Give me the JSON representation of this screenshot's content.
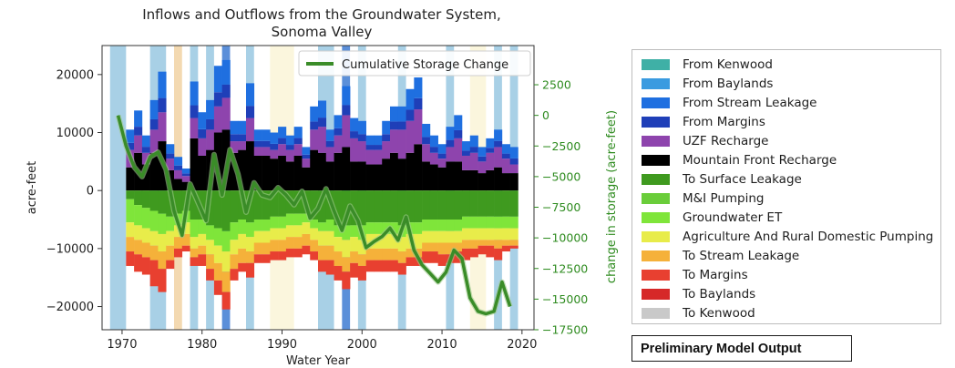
{
  "chart_data": {
    "type": "area",
    "title_line1": "Inflows and Outflows from the Groundwater System,",
    "title_line2": "Sonoma Valley",
    "xlabel": "Water Year",
    "ylabel": "acre-feet",
    "y2label": "change in storage (acre-feet)",
    "xlim": [
      1967.5,
      2021.5
    ],
    "ylim": [
      -24000,
      25000
    ],
    "y2lim": [
      -17500,
      5700
    ],
    "x_ticks": [
      "1970",
      "1980",
      "1990",
      "2000",
      "2010",
      "2020"
    ],
    "x_tick_values": [
      1970,
      1980,
      1990,
      2000,
      2010,
      2020
    ],
    "y_ticks": [
      "20000",
      "10000",
      "0",
      "−10000",
      "−20000"
    ],
    "y_tick_values": [
      20000,
      10000,
      0,
      -10000,
      -20000
    ],
    "y2_ticks": [
      "2500",
      "0",
      "−2500",
      "−5000",
      "−7500",
      "−10000",
      "−12500",
      "−15000",
      "−17500"
    ],
    "y2_tick_values": [
      2500,
      0,
      -2500,
      -5000,
      -7500,
      -10000,
      -12500,
      -15000,
      -17500
    ],
    "year_start": 1970,
    "years_count": 49,
    "inflow_totals": [
      10500,
      13800,
      9500,
      15600,
      20500,
      8000,
      5800,
      3800,
      18800,
      13500,
      15600,
      21500,
      22500,
      12000,
      12000,
      18500,
      10500,
      10500,
      10000,
      11000,
      9500,
      11000,
      7500,
      14500,
      15500,
      10500,
      13000,
      18000,
      12500,
      12000,
      9500,
      9500,
      12000,
      14500,
      14500,
      17500,
      19500,
      11500,
      9500,
      8000,
      11000,
      13000,
      8500,
      9500,
      7500,
      9000,
      10500,
      8000,
      7500
    ],
    "inflow_black": [
      4000,
      6500,
      4500,
      6500,
      8500,
      3500,
      2000,
      1500,
      9000,
      6000,
      7000,
      10000,
      10500,
      6500,
      7000,
      8500,
      6000,
      6000,
      5500,
      6000,
      5000,
      6000,
      4000,
      7000,
      6500,
      5000,
      6500,
      7500,
      5000,
      5000,
      4500,
      4500,
      5500,
      6500,
      5500,
      6500,
      8000,
      5000,
      4500,
      4000,
      5000,
      5000,
      3500,
      3500,
      3000,
      3500,
      4000,
      3000,
      3000
    ],
    "inflow_purple": [
      7000,
      9500,
      6500,
      10500,
      13500,
      5500,
      3500,
      2500,
      12500,
      9000,
      10500,
      14500,
      16000,
      8500,
      8500,
      12500,
      7500,
      7500,
      7000,
      8000,
      7000,
      8000,
      5500,
      10500,
      11000,
      7500,
      9500,
      13000,
      9000,
      8500,
      7000,
      7000,
      8500,
      10500,
      10500,
      12000,
      14000,
      8000,
      6500,
      5500,
      7500,
      9000,
      6000,
      6500,
      5000,
      6500,
      7500,
      5500,
      4500
    ],
    "outflow_green": [
      -1500,
      -2500,
      -3000,
      -3500,
      -4000,
      -4500,
      -4000,
      -3500,
      -5000,
      -5000,
      -6000,
      -6500,
      -7000,
      -5500,
      -5000,
      -5500,
      -5000,
      -5000,
      -4500,
      -4500,
      -4000,
      -4000,
      -4000,
      -5000,
      -5500,
      -5000,
      -6000,
      -6000,
      -6000,
      -6000,
      -5500,
      -5500,
      -5500,
      -5500,
      -6000,
      -5500,
      -5500,
      -5000,
      -5000,
      -5000,
      -5000,
      -5000,
      -4500,
      -4500,
      -4500,
      -4500,
      -4500,
      -4500,
      -4500
    ],
    "outflow_lime": [
      -5500,
      -6000,
      -6500,
      -7000,
      -7500,
      -7000,
      -6000,
      -5500,
      -8000,
      -7500,
      -8500,
      -9500,
      -10500,
      -8500,
      -7500,
      -8000,
      -7000,
      -7000,
      -6500,
      -6500,
      -6000,
      -6000,
      -5500,
      -6500,
      -7000,
      -7000,
      -8000,
      -8500,
      -8000,
      -8500,
      -7500,
      -7500,
      -7500,
      -7500,
      -8000,
      -7500,
      -7500,
      -7000,
      -7000,
      -7000,
      -7000,
      -7000,
      -6500,
      -6500,
      -6500,
      -6500,
      -6500,
      -6500,
      -6500
    ],
    "outflow_yellow": [
      -8000,
      -8500,
      -9000,
      -9500,
      -10500,
      -9500,
      -8000,
      -7500,
      -10000,
      -9500,
      -11000,
      -12500,
      -14000,
      -11000,
      -10000,
      -10500,
      -9000,
      -9000,
      -8500,
      -8500,
      -8000,
      -8000,
      -7500,
      -8500,
      -9500,
      -9500,
      -10500,
      -11500,
      -10500,
      -11000,
      -10000,
      -10000,
      -10000,
      -10000,
      -10500,
      -10000,
      -10000,
      -9000,
      -9000,
      -9000,
      -9000,
      -9000,
      -8500,
      -8500,
      -8500,
      -8500,
      -8500,
      -8500,
      -8500
    ],
    "outflow_orange": [
      -10500,
      -11000,
      -11500,
      -12000,
      -13500,
      -12000,
      -10000,
      -9500,
      -11500,
      -11000,
      -13500,
      -15500,
      -17500,
      -13500,
      -12500,
      -12500,
      -11000,
      -11000,
      -10500,
      -10500,
      -10000,
      -10000,
      -9500,
      -10500,
      -12000,
      -12000,
      -13000,
      -14000,
      -12500,
      -13000,
      -12000,
      -12000,
      -12000,
      -12000,
      -12500,
      -11500,
      -11500,
      -10500,
      -10500,
      -11000,
      -11000,
      -10500,
      -10000,
      -10000,
      -9500,
      -9500,
      -10000,
      -9500,
      -9500
    ],
    "outflow_total": [
      -13000,
      -14000,
      -14500,
      -16500,
      -17500,
      -13500,
      -11500,
      -10500,
      -13000,
      -13000,
      -15500,
      -18000,
      -20500,
      -15500,
      -14000,
      -15000,
      -12500,
      -12500,
      -12000,
      -12000,
      -11500,
      -11500,
      -11000,
      -12000,
      -14000,
      -14500,
      -15500,
      -17000,
      -15000,
      -15500,
      -14000,
      -14000,
      -14000,
      -14000,
      -14500,
      -13000,
      -13000,
      -12500,
      -12500,
      -13000,
      -12500,
      -12500,
      -12000,
      -11500,
      -11000,
      -11500,
      -12000,
      -10500,
      -10000
    ],
    "background_bands": [
      {
        "x0": 1968.5,
        "x1": 1970.5,
        "color": "#a8d0e6"
      },
      {
        "x0": 1973.5,
        "x1": 1975.5,
        "color": "#a8d0e6"
      },
      {
        "x0": 1976.5,
        "x1": 1977.5,
        "color": "#f3d9b1"
      },
      {
        "x0": 1978.5,
        "x1": 1979.5,
        "color": "#a8d0e6"
      },
      {
        "x0": 1980.5,
        "x1": 1981.5,
        "color": "#a8d0e6"
      },
      {
        "x0": 1982.5,
        "x1": 1983.5,
        "color": "#5b8fd9"
      },
      {
        "x0": 1985.5,
        "x1": 1986.5,
        "color": "#a8d0e6"
      },
      {
        "x0": 1988.5,
        "x1": 1991.5,
        "color": "#fbf6dd"
      },
      {
        "x0": 1994.5,
        "x1": 1996.5,
        "color": "#a8d0e6"
      },
      {
        "x0": 1997.5,
        "x1": 1998.5,
        "color": "#5b8fd9"
      },
      {
        "x0": 1999.5,
        "x1": 2000.5,
        "color": "#a8d0e6"
      },
      {
        "x0": 2004.5,
        "x1": 2005.5,
        "color": "#a8d0e6"
      },
      {
        "x0": 2010.5,
        "x1": 2011.5,
        "color": "#a8d0e6"
      },
      {
        "x0": 2013.5,
        "x1": 2015.5,
        "color": "#fbf6dd"
      },
      {
        "x0": 2016.5,
        "x1": 2017.5,
        "color": "#a8d0e6"
      },
      {
        "x0": 2018.5,
        "x1": 2019.5,
        "color": "#a8d0e6"
      }
    ],
    "cumulative_storage": {
      "name": "Cumulative Storage Change",
      "color": "#3a8c28",
      "years": [
        1969.5,
        1970.5,
        1971.5,
        1972.5,
        1973.5,
        1974.5,
        1975.5,
        1976.5,
        1977.5,
        1978.5,
        1979.5,
        1980.5,
        1981.5,
        1982.5,
        1983.5,
        1984.5,
        1985.5,
        1986.5,
        1987.5,
        1988.5,
        1989.5,
        1990.5,
        1991.5,
        1992.5,
        1993.5,
        1994.5,
        1995.5,
        1996.5,
        1997.5,
        1998.5,
        1999.5,
        2000.5,
        2001.5,
        2002.5,
        2003.5,
        2004.5,
        2005.5,
        2006.5,
        2007.5,
        2008.5,
        2009.5,
        2010.5,
        2011.5,
        2012.5,
        2013.5,
        2014.5,
        2015.5,
        2016.5,
        2017.5,
        2018.5
      ],
      "values": [
        0,
        -2500,
        -4200,
        -5000,
        -3400,
        -3000,
        -4400,
        -7800,
        -9800,
        -5600,
        -7100,
        -8600,
        -3200,
        -6500,
        -2800,
        -4800,
        -7900,
        -5500,
        -6500,
        -6700,
        -5900,
        -6500,
        -7300,
        -6200,
        -8400,
        -7600,
        -6000,
        -7800,
        -9400,
        -7400,
        -8600,
        -10800,
        -10300,
        -9900,
        -9200,
        -10200,
        -8300,
        -11000,
        -12200,
        -12900,
        -13600,
        -12800,
        -11000,
        -11700,
        -14900,
        -16000,
        -16200,
        -16000,
        -13600,
        -15600
      ]
    }
  },
  "legend": {
    "items": [
      {
        "label": "From Kenwood",
        "color": "#3fb0a6"
      },
      {
        "label": "From Baylands",
        "color": "#3a9be0"
      },
      {
        "label": "From Stream Leakage",
        "color": "#1f6fe0"
      },
      {
        "label": "From Margins",
        "color": "#1f3fb8"
      },
      {
        "label": "UZF Recharge",
        "color": "#8e44ad"
      },
      {
        "label": "Mountain Front Recharge",
        "color": "#000000"
      },
      {
        "label": "To Surface Leakage",
        "color": "#3f9a1f"
      },
      {
        "label": "M&I Pumping",
        "color": "#6acd3a"
      },
      {
        "label": "Groundwater ET",
        "color": "#7fe53a"
      },
      {
        "label": "Agriculture And Rural Domestic Pumping",
        "color": "#e8ec4a"
      },
      {
        "label": "To Stream Leakage",
        "color": "#f5b13a"
      },
      {
        "label": "To Margins",
        "color": "#e84030"
      },
      {
        "label": "To Baylands",
        "color": "#d62828"
      },
      {
        "label": "To Kenwood",
        "color": "#c9c9c9"
      }
    ]
  },
  "note": {
    "text": "Preliminary Model Output"
  },
  "colors": {
    "inflow_blue_dark": "#1f3fb8",
    "inflow_blue_mid": "#1f6fe0",
    "inflow_purple": "#8e44ad",
    "inflow_black": "#000000",
    "outflow_green_dark": "#3f9a1f",
    "outflow_lime": "#7fe53a",
    "outflow_yellow": "#e8ec4a",
    "outflow_orange": "#f5b13a",
    "outflow_red": "#e84030",
    "axis_green": "#2e8b1f"
  }
}
